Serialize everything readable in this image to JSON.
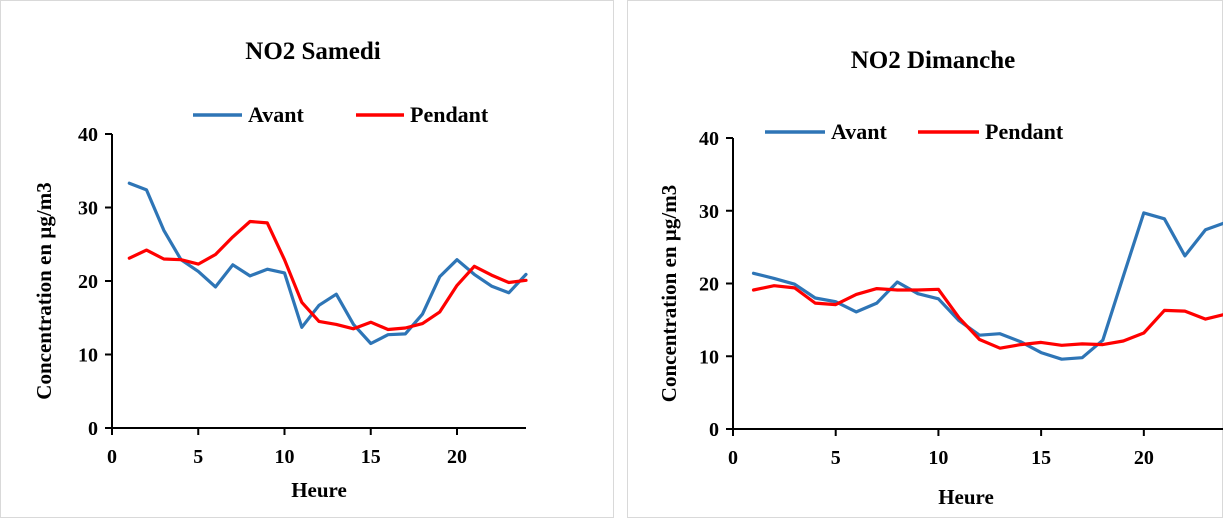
{
  "chart_data": [
    {
      "type": "line",
      "title": "NO2 Samedi",
      "xlabel": "Heure",
      "ylabel": "Concentration en µg/m3",
      "xlim": [
        0,
        24
      ],
      "ylim": [
        0,
        40
      ],
      "xticks": [
        "0",
        "5",
        "10",
        "15",
        "20"
      ],
      "yticks": [
        "0",
        "10",
        "20",
        "30",
        "40"
      ],
      "grid": false,
      "legend_position": "top",
      "x": [
        1,
        2,
        3,
        4,
        5,
        6,
        7,
        8,
        9,
        10,
        11,
        12,
        13,
        14,
        15,
        16,
        17,
        18,
        19,
        20,
        21,
        22,
        23,
        24
      ],
      "series": [
        {
          "name": "Avant",
          "color": "#2E75B6",
          "values": [
            33.3,
            32.4,
            26.9,
            22.9,
            21.3,
            19.2,
            22.2,
            20.7,
            21.6,
            21.1,
            13.7,
            16.7,
            18.2,
            14.1,
            11.5,
            12.7,
            12.8,
            15.5,
            20.6,
            22.9,
            20.9,
            19.3,
            18.4,
            20.9
          ]
        },
        {
          "name": "Pendant",
          "color": "#FF0000",
          "values": [
            23.1,
            24.2,
            23.0,
            22.9,
            22.3,
            23.6,
            26.0,
            28.1,
            27.9,
            22.9,
            17.1,
            14.5,
            14.1,
            13.5,
            14.4,
            13.4,
            13.6,
            14.2,
            15.8,
            19.4,
            22.0,
            20.8,
            19.8,
            20.1
          ]
        }
      ]
    },
    {
      "type": "line",
      "title": "NO2 Dimanche",
      "xlabel": "Heure",
      "ylabel": "Concentration en µg/m3",
      "xlim": [
        0,
        24
      ],
      "ylim": [
        0,
        40
      ],
      "xticks": [
        "0",
        "5",
        "10",
        "15",
        "20"
      ],
      "yticks": [
        "0",
        "10",
        "20",
        "30",
        "40"
      ],
      "grid": false,
      "legend_position": "top",
      "x": [
        1,
        2,
        3,
        4,
        5,
        6,
        7,
        8,
        9,
        10,
        11,
        12,
        13,
        14,
        15,
        16,
        17,
        18,
        19,
        20,
        21,
        22,
        23,
        24
      ],
      "series": [
        {
          "name": "Avant",
          "color": "#2E75B6",
          "values": [
            21.4,
            20.7,
            19.9,
            18.0,
            17.5,
            16.1,
            17.3,
            20.2,
            18.6,
            17.9,
            14.9,
            12.9,
            13.1,
            12.0,
            10.5,
            9.6,
            9.8,
            12.2,
            21.0,
            29.7,
            28.9,
            23.8,
            27.4,
            28.4
          ]
        },
        {
          "name": "Pendant",
          "color": "#FF0000",
          "values": [
            19.1,
            19.7,
            19.4,
            17.3,
            17.1,
            18.5,
            19.3,
            19.1,
            19.1,
            19.2,
            15.3,
            12.3,
            11.1,
            11.6,
            11.9,
            11.5,
            11.7,
            11.6,
            12.1,
            13.2,
            16.3,
            16.2,
            15.1,
            15.8
          ]
        }
      ]
    }
  ]
}
